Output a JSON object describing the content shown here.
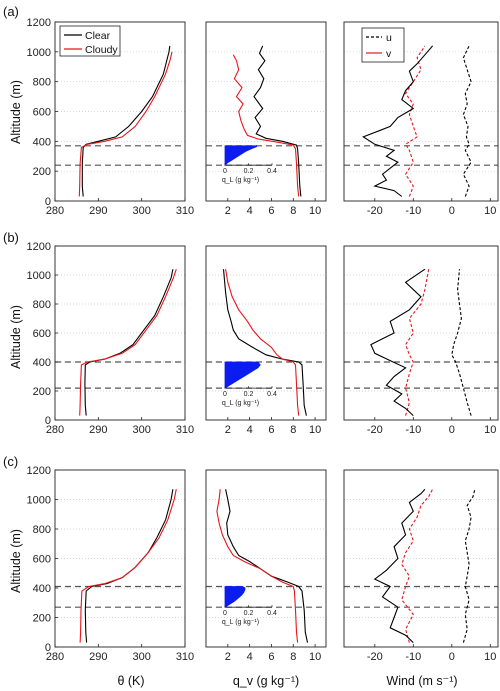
{
  "figure": {
    "panel_labels": [
      "(a)",
      "(b)",
      "(c)"
    ],
    "ylabel": "Altitude (m)",
    "yticks": [
      0,
      200,
      400,
      600,
      800,
      1000,
      1200
    ],
    "ylim": [
      0,
      1200
    ],
    "xlabels": [
      "θ (K)",
      "q_v (g kg⁻¹)",
      "Wind (m s⁻¹)"
    ],
    "theta_xticks": [
      280,
      290,
      300,
      310
    ],
    "qv_xticks": [
      2,
      4,
      6,
      8,
      10
    ],
    "wind_xticks": [
      -20,
      -10,
      0,
      10
    ],
    "inset_xticks": [
      "0",
      "0.2",
      "0.4"
    ],
    "inset_xlabel": "q_L (g kg⁻¹)",
    "legend_theta": [
      "Clear",
      "Cloudy"
    ],
    "legend_wind": [
      "u",
      "v"
    ],
    "colors": {
      "clear": "#000000",
      "cloudy": "#e8151b",
      "liquid": "#0a1cf0",
      "dashed": "#555555",
      "grid": "#c8c8c8"
    }
  },
  "chart_data": [
    {
      "type": "line",
      "panel": "(a)",
      "xlabel": "θ (K)",
      "ylabel": "Altitude (m)",
      "xlim": [
        280,
        310
      ],
      "ylim": [
        0,
        1200
      ],
      "reference_altitudes": [
        370,
        240
      ],
      "series": [
        {
          "name": "Clear",
          "x": [
            286.5,
            286.3,
            286.3,
            286.5,
            287.2,
            290.0,
            294.0,
            297.0,
            300.0,
            302.5,
            305.0,
            306.3,
            306.5
          ],
          "y": [
            30,
            100,
            250,
            360,
            380,
            400,
            430,
            500,
            600,
            700,
            850,
            1000,
            1040
          ]
        },
        {
          "name": "Cloudy",
          "x": [
            285.6,
            285.7,
            285.8,
            286.1,
            287.5,
            291.5,
            295.5,
            298.5,
            301.0,
            303.0,
            305.5,
            306.6,
            307.0
          ],
          "y": [
            30,
            100,
            250,
            360,
            380,
            400,
            430,
            500,
            600,
            700,
            850,
            950,
            1000
          ]
        }
      ]
    },
    {
      "type": "line",
      "panel": "(a)",
      "xlabel": "q_v (g kg⁻¹)",
      "xlim": [
        0,
        11
      ],
      "ylim": [
        0,
        1200
      ],
      "reference_altitudes": [
        370,
        240
      ],
      "series": [
        {
          "name": "Clear",
          "x": [
            8.7,
            8.6,
            8.5,
            8.4,
            8.3,
            7.0,
            5.5,
            4.6,
            5.0,
            4.5,
            5.2,
            4.4,
            5.0,
            5.3,
            4.8,
            5.4,
            4.9,
            5.2
          ],
          "y": [
            30,
            100,
            250,
            350,
            375,
            400,
            420,
            450,
            500,
            560,
            620,
            700,
            760,
            820,
            880,
            940,
            990,
            1040
          ]
        },
        {
          "name": "Cloudy",
          "x": [
            8.5,
            8.4,
            8.3,
            8.2,
            8.0,
            6.5,
            4.8,
            3.8,
            3.5,
            3.2,
            3.0,
            3.4,
            2.8,
            3.3,
            2.6,
            3.0,
            2.8,
            2.5
          ],
          "y": [
            30,
            100,
            250,
            350,
            375,
            395,
            415,
            440,
            480,
            540,
            600,
            650,
            700,
            760,
            820,
            880,
            940,
            980
          ]
        }
      ],
      "liquid_profile": {
        "name": "q_L",
        "x": [
          0.0,
          0.02,
          0.05,
          0.08,
          0.11,
          0.14,
          0.17,
          0.21,
          0.24,
          0.27,
          0.27
        ],
        "y": [
          240,
          255,
          270,
          285,
          300,
          315,
          330,
          345,
          355,
          365,
          370
        ]
      }
    },
    {
      "type": "line",
      "panel": "(a)",
      "xlabel": "Wind (m s⁻¹)",
      "xlim": [
        -28,
        12
      ],
      "ylim": [
        0,
        1200
      ],
      "reference_altitudes": [
        370,
        240
      ],
      "series": [
        {
          "name": "u",
          "x": [
            3.5,
            4.5,
            3.0,
            5.0,
            3.5,
            4.5,
            3.8,
            4.2,
            3.0,
            4.0,
            3.5,
            5.0,
            4.0,
            3.0,
            4.5
          ],
          "y": [
            30,
            100,
            180,
            260,
            340,
            380,
            430,
            500,
            580,
            650,
            720,
            800,
            880,
            960,
            1040
          ]
        },
        {
          "name": "v",
          "x": [
            -11,
            -10,
            -12,
            -10,
            -11,
            -12,
            -9,
            -10,
            -11,
            -10,
            -12,
            -10,
            -8,
            -9,
            -7
          ],
          "y": [
            30,
            100,
            180,
            260,
            340,
            380,
            430,
            500,
            580,
            650,
            720,
            800,
            880,
            960,
            1040
          ]
        },
        {
          "name": "Clear",
          "x": [
            -13,
            -15,
            -20,
            -17,
            -18,
            -16,
            -14,
            -17,
            -15,
            -20,
            -23,
            -16,
            -14,
            -10,
            -13,
            -12,
            -10,
            -11,
            -9,
            -7,
            -5
          ],
          "y": [
            30,
            70,
            100,
            140,
            180,
            220,
            260,
            300,
            340,
            380,
            430,
            500,
            560,
            620,
            680,
            740,
            800,
            870,
            920,
            980,
            1040
          ]
        }
      ]
    },
    {
      "type": "line",
      "panel": "(b)",
      "xlabel": "θ (K)",
      "ylabel": "Altitude (m)",
      "xlim": [
        280,
        310
      ],
      "ylim": [
        0,
        1200
      ],
      "reference_altitudes": [
        400,
        220
      ],
      "series": [
        {
          "name": "Clear",
          "x": [
            287.2,
            287.0,
            286.9,
            287.0,
            288.0,
            291.5,
            295.0,
            298.0,
            300.5,
            303.0,
            305.0,
            306.8,
            307.2
          ],
          "y": [
            30,
            100,
            250,
            380,
            400,
            420,
            460,
            520,
            620,
            720,
            850,
            980,
            1040
          ]
        },
        {
          "name": "Cloudy",
          "x": [
            285.7,
            285.8,
            285.9,
            286.1,
            287.5,
            291.5,
            295.5,
            298.5,
            301.0,
            303.5,
            305.5,
            307.3,
            308.0
          ],
          "y": [
            30,
            100,
            250,
            380,
            400,
            420,
            460,
            520,
            620,
            720,
            850,
            980,
            1040
          ]
        }
      ]
    },
    {
      "type": "line",
      "panel": "(b)",
      "xlabel": "q_v (g kg⁻¹)",
      "xlim": [
        0,
        11
      ],
      "ylim": [
        0,
        1200
      ],
      "reference_altitudes": [
        400,
        220
      ],
      "series": [
        {
          "name": "Clear",
          "x": [
            9.2,
            9.0,
            8.9,
            8.8,
            8.5,
            7.0,
            5.5,
            4.3,
            3.0,
            2.5,
            2.3,
            2.0,
            1.8,
            1.6
          ],
          "y": [
            30,
            100,
            250,
            380,
            400,
            420,
            450,
            500,
            560,
            620,
            680,
            760,
            880,
            1040
          ]
        },
        {
          "name": "Cloudy",
          "x": [
            8.5,
            8.4,
            8.3,
            8.2,
            8.0,
            7.0,
            6.5,
            6.0,
            5.0,
            4.3,
            3.8,
            3.0,
            2.4,
            2.0,
            1.8
          ],
          "y": [
            30,
            100,
            250,
            380,
            400,
            420,
            450,
            500,
            560,
            620,
            680,
            760,
            850,
            950,
            1040
          ]
        }
      ],
      "liquid_profile": {
        "name": "q_L",
        "x": [
          0.0,
          0.04,
          0.08,
          0.12,
          0.16,
          0.2,
          0.24,
          0.28,
          0.3,
          0.28
        ],
        "y": [
          220,
          240,
          260,
          280,
          300,
          320,
          340,
          360,
          380,
          400
        ]
      }
    },
    {
      "type": "line",
      "panel": "(b)",
      "xlabel": "Wind (m s⁻¹)",
      "xlim": [
        -28,
        12
      ],
      "ylim": [
        0,
        1200
      ],
      "reference_altitudes": [
        400,
        220
      ],
      "series": [
        {
          "name": "u",
          "x": [
            5.0,
            4.0,
            3.0,
            2.0,
            1.0,
            0.0,
            0.5,
            1.5,
            2.5,
            2.0,
            1.5,
            2.0
          ],
          "y": [
            30,
            120,
            220,
            320,
            400,
            450,
            520,
            600,
            700,
            800,
            900,
            1040
          ]
        },
        {
          "name": "v",
          "x": [
            -12,
            -11,
            -12,
            -11,
            -10,
            -11,
            -12,
            -10,
            -11,
            -8,
            -7,
            -6
          ],
          "y": [
            30,
            120,
            220,
            320,
            400,
            450,
            520,
            600,
            700,
            800,
            900,
            1040
          ]
        },
        {
          "name": "Clear",
          "x": [
            -10,
            -12,
            -15,
            -13,
            -17,
            -15,
            -12,
            -16,
            -20,
            -21,
            -15,
            -16,
            -11,
            -8,
            -12,
            -7
          ],
          "y": [
            30,
            80,
            130,
            180,
            240,
            300,
            360,
            410,
            460,
            520,
            600,
            680,
            760,
            850,
            950,
            1040
          ]
        }
      ]
    },
    {
      "type": "line",
      "panel": "(c)",
      "xlabel": "θ (K)",
      "ylabel": "Altitude (m)",
      "xlim": [
        280,
        310
      ],
      "ylim": [
        0,
        1200
      ],
      "reference_altitudes": [
        410,
        270
      ],
      "series": [
        {
          "name": "Clear",
          "x": [
            287.3,
            287.1,
            287.0,
            287.2,
            288.5,
            292.0,
            295.5,
            298.5,
            301.5,
            303.5,
            305.5,
            306.8,
            307.2
          ],
          "y": [
            30,
            100,
            250,
            380,
            410,
            430,
            470,
            540,
            640,
            740,
            860,
            1000,
            1070
          ]
        },
        {
          "name": "Cloudy",
          "x": [
            285.8,
            285.9,
            286.0,
            286.2,
            287.8,
            291.5,
            295.5,
            298.5,
            301.5,
            304.0,
            306.0,
            307.5,
            308.0
          ],
          "y": [
            30,
            100,
            250,
            380,
            410,
            430,
            470,
            540,
            640,
            740,
            860,
            1000,
            1070
          ]
        }
      ]
    },
    {
      "type": "line",
      "panel": "(c)",
      "xlabel": "q_v (g kg⁻¹)",
      "xlim": [
        0,
        11
      ],
      "ylim": [
        0,
        1200
      ],
      "reference_altitudes": [
        410,
        270
      ],
      "series": [
        {
          "name": "Clear",
          "x": [
            9.3,
            9.1,
            9.0,
            8.8,
            8.5,
            7.5,
            6.0,
            5.0,
            4.0,
            3.0,
            2.5,
            2.0,
            1.9,
            2.2,
            2.0,
            1.8
          ],
          "y": [
            30,
            100,
            250,
            380,
            410,
            440,
            480,
            530,
            580,
            620,
            680,
            760,
            840,
            920,
            1000,
            1070
          ]
        },
        {
          "name": "Cloudy",
          "x": [
            8.4,
            8.3,
            8.2,
            8.1,
            8.0,
            7.0,
            6.0,
            5.0,
            3.5,
            2.5,
            2.0,
            1.5,
            1.2,
            1.0,
            1.2,
            1.3
          ],
          "y": [
            30,
            100,
            250,
            380,
            410,
            440,
            480,
            530,
            580,
            620,
            680,
            760,
            840,
            920,
            1000,
            1070
          ]
        }
      ],
      "liquid_profile": {
        "name": "q_L",
        "x": [
          0.0,
          0.04,
          0.08,
          0.11,
          0.14,
          0.16,
          0.17,
          0.17,
          0.15
        ],
        "y": [
          270,
          290,
          310,
          330,
          350,
          370,
          390,
          400,
          410
        ]
      }
    },
    {
      "type": "line",
      "panel": "(c)",
      "xlabel": "Wind (m s⁻¹)",
      "xlim": [
        -28,
        12
      ],
      "ylim": [
        0,
        1200
      ],
      "reference_altitudes": [
        410,
        270
      ],
      "series": [
        {
          "name": "u",
          "x": [
            3.0,
            4.0,
            3.5,
            4.5,
            3.5,
            4.0,
            4.5,
            4.0,
            3.5,
            4.5,
            5.0,
            4.0,
            5.5,
            6.0
          ],
          "y": [
            30,
            120,
            220,
            320,
            410,
            480,
            560,
            640,
            720,
            800,
            880,
            960,
            1020,
            1070
          ]
        },
        {
          "name": "v",
          "x": [
            -11,
            -12,
            -10,
            -13,
            -12,
            -11,
            -13,
            -12,
            -10,
            -11,
            -9,
            -8,
            -6,
            -5
          ],
          "y": [
            30,
            120,
            220,
            320,
            410,
            480,
            560,
            640,
            720,
            800,
            880,
            960,
            1020,
            1070
          ]
        },
        {
          "name": "Clear",
          "x": [
            -10,
            -12,
            -16,
            -15,
            -14,
            -18,
            -16,
            -20,
            -17,
            -14,
            -15,
            -12,
            -13,
            -10,
            -11,
            -8,
            -7
          ],
          "y": [
            30,
            80,
            130,
            200,
            270,
            340,
            410,
            460,
            520,
            600,
            680,
            760,
            840,
            920,
            980,
            1040,
            1070
          ]
        }
      ]
    }
  ]
}
